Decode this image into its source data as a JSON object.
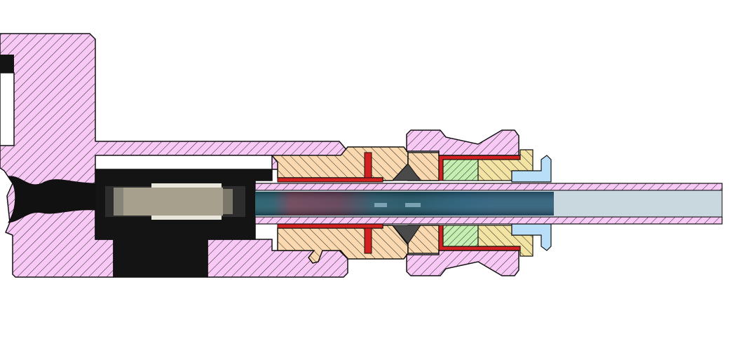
{
  "figure": {
    "kind": "mechanical cross-section",
    "text_labels": []
  },
  "colors": {
    "background": "#ffffff",
    "outline": "#111111",
    "hatch": "#222222",
    "pink_body": "#f7c9f4",
    "dark_bore": "#141414",
    "peach_nut": "#fbd9b0",
    "red_seal": "#d21f1f",
    "green_ring": "#c5efb1",
    "yellow_ring": "#f3e4a4",
    "blue_washer": "#b9def7",
    "tube_inner": "#c9d7de",
    "gray_insert": "#a7a08c",
    "teal_fluid": "#1f5566",
    "mauve_fluid": "#6a3f55"
  },
  "parts": [
    {
      "id": "main-body",
      "color_key": "pink_body",
      "hatched": true
    },
    {
      "id": "bore-cavity",
      "color_key": "dark_bore",
      "hatched": false
    },
    {
      "id": "insert-block",
      "color_key": "gray_insert",
      "hatched": false
    },
    {
      "id": "gland-nut",
      "color_key": "peach_nut",
      "hatched": true
    },
    {
      "id": "seal",
      "color_key": "red_seal",
      "hatched": false
    },
    {
      "id": "outer-collar",
      "color_key": "pink_body",
      "hatched": true
    },
    {
      "id": "green-ring",
      "color_key": "green_ring",
      "hatched": true
    },
    {
      "id": "yellow-ring",
      "color_key": "yellow_ring",
      "hatched": true
    },
    {
      "id": "end-washer",
      "color_key": "blue_washer",
      "hatched": false
    },
    {
      "id": "tube",
      "color_key": "pink_body",
      "hatched": true
    }
  ]
}
